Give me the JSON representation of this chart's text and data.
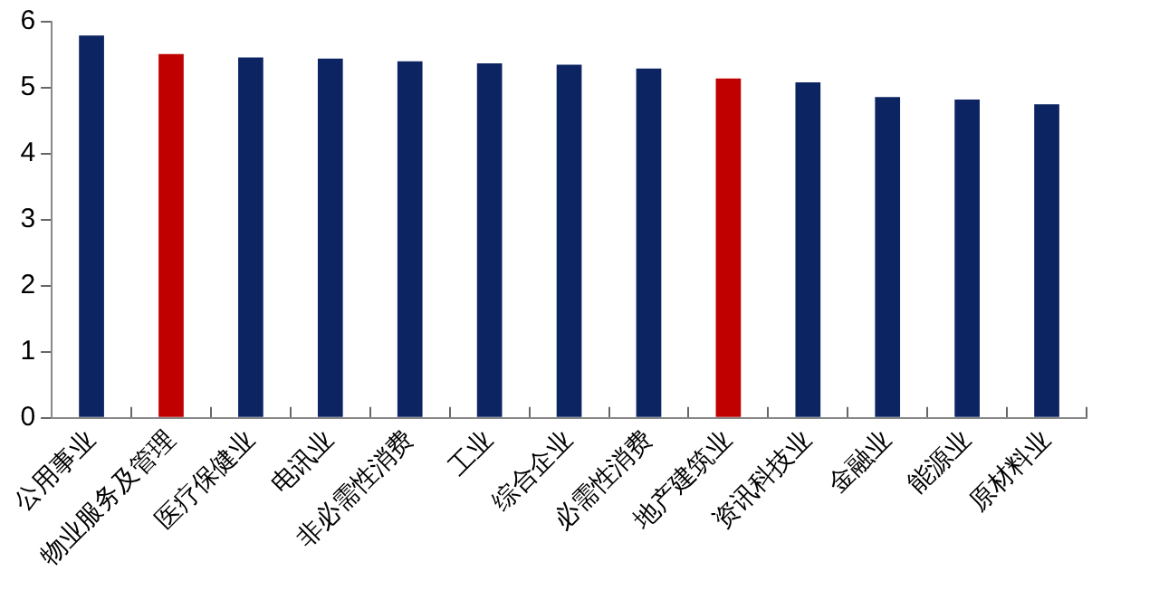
{
  "chart_data": {
    "type": "bar",
    "categories": [
      "公用事业",
      "物业服务及管理",
      "医疗保健业",
      "电讯业",
      "非必需性消费",
      "工业",
      "综合企业",
      "必需性消费",
      "地产建筑业",
      "资讯科技业",
      "金融业",
      "能源业",
      "原材料业"
    ],
    "values": [
      5.79,
      5.51,
      5.46,
      5.44,
      5.4,
      5.37,
      5.35,
      5.29,
      5.14,
      5.08,
      4.86,
      4.82,
      4.75
    ],
    "colors": [
      "#0d2463",
      "#c00000",
      "#0d2463",
      "#0d2463",
      "#0d2463",
      "#0d2463",
      "#0d2463",
      "#0d2463",
      "#c00000",
      "#0d2463",
      "#0d2463",
      "#0d2463",
      "#0d2463"
    ],
    "ylim": [
      0,
      6
    ],
    "yticks": [
      0,
      1,
      2,
      3,
      4,
      5,
      6
    ],
    "grid": false,
    "legend": false
  }
}
